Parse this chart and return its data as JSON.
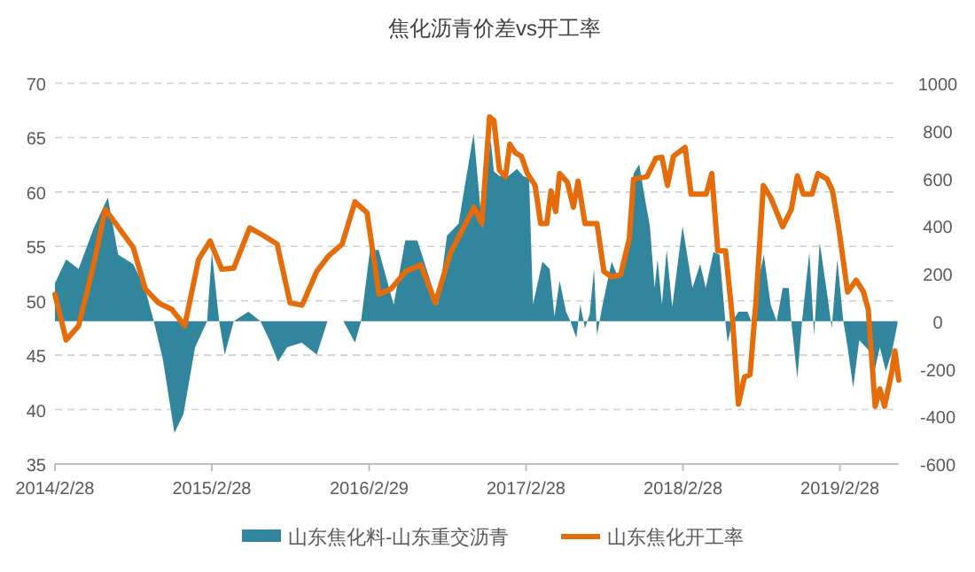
{
  "chart_data": {
    "type": "line",
    "title": "焦化沥青价差vs开工率",
    "xlim": [
      "2014-02-28",
      "2019-07-15"
    ],
    "xticks": [
      {
        "value": "2014-02-28",
        "label": "2014/2/28"
      },
      {
        "value": "2015-02-28",
        "label": "2015/2/28"
      },
      {
        "value": "2016-02-29",
        "label": "2016/2/29"
      },
      {
        "value": "2017-02-28",
        "label": "2017/2/28"
      },
      {
        "value": "2018-02-28",
        "label": "2018/2/28"
      },
      {
        "value": "2019-02-28",
        "label": "2019/2/28"
      }
    ],
    "ylim": [
      35,
      70
    ],
    "yticks": [
      35,
      40,
      45,
      50,
      55,
      60,
      65,
      70
    ],
    "y2lim": [
      -600,
      1000
    ],
    "y2ticks": [
      -600,
      -400,
      -200,
      0,
      200,
      400,
      600,
      800,
      1000
    ],
    "grid": "y",
    "legend": "bottom",
    "series": [
      {
        "name": "山东焦化料-山东重交沥青",
        "type": "area",
        "axis": "y2",
        "color": "#31859c",
        "x": [
          "2014-02-28",
          "2014-03-26",
          "2014-04-24",
          "2014-05-29",
          "2014-07-01",
          "2014-07-25",
          "2014-08-29",
          "2014-09-25",
          "2014-10-16",
          "2014-11-06",
          "2014-12-03",
          "2014-12-24",
          "2015-01-20",
          "2015-02-17",
          "2015-02-28",
          "2015-03-17",
          "2015-03-30",
          "2015-04-20",
          "2015-05-24",
          "2015-06-21",
          "2015-07-12",
          "2015-08-01",
          "2015-08-22",
          "2015-09-25",
          "2015-10-30",
          "2015-11-24",
          "2015-12-31",
          "2016-01-27",
          "2016-02-10",
          "2016-03-02",
          "2016-03-22",
          "2016-04-26",
          "2016-05-23",
          "2016-06-20",
          "2016-08-07",
          "2016-08-28",
          "2016-09-24",
          "2016-10-29",
          "2016-11-18",
          "2016-11-24",
          "2016-12-08",
          "2016-12-15",
          "2016-12-28",
          "2017-01-18",
          "2017-02-07",
          "2017-02-21",
          "2017-03-07",
          "2017-03-16",
          "2017-04-07",
          "2017-04-24",
          "2017-05-05",
          "2017-05-17",
          "2017-06-01",
          "2017-06-11",
          "2017-06-25",
          "2017-07-04",
          "2017-07-15",
          "2017-07-26",
          "2017-08-05",
          "2017-08-12",
          "2017-08-25",
          "2017-09-15",
          "2017-09-29",
          "2017-10-19",
          "2017-11-05",
          "2017-11-18",
          "2017-12-02",
          "2017-12-13",
          "2017-12-24",
          "2017-12-31",
          "2018-01-10",
          "2018-01-21",
          "2018-02-03",
          "2018-02-27",
          "2018-03-22",
          "2018-04-09",
          "2018-04-22",
          "2018-05-10",
          "2018-05-24",
          "2018-06-07",
          "2018-06-12",
          "2018-06-23",
          "2018-07-07",
          "2018-07-28",
          "2018-08-06",
          "2018-08-17",
          "2018-09-04",
          "2018-09-20",
          "2018-10-04",
          "2018-10-18",
          "2018-11-01",
          "2018-11-07",
          "2018-11-21",
          "2018-12-02",
          "2018-12-19",
          "2018-12-30",
          "2019-01-12",
          "2019-01-29",
          "2019-02-09",
          "2019-02-22",
          "2019-03-08",
          "2019-03-18",
          "2019-03-31",
          "2019-04-14",
          "2019-05-05",
          "2019-05-18",
          "2019-06-01",
          "2019-06-15",
          "2019-06-29",
          "2019-07-12"
        ],
        "values": [
          160,
          260,
          220,
          390,
          520,
          280,
          240,
          140,
          0,
          -160,
          -470,
          -390,
          -110,
          0,
          290,
          0,
          -140,
          0,
          40,
          0,
          -80,
          -170,
          -110,
          -90,
          -140,
          0,
          0,
          -90,
          0,
          300,
          300,
          70,
          340,
          340,
          70,
          360,
          410,
          790,
          390,
          560,
          760,
          630,
          610,
          610,
          640,
          610,
          600,
          70,
          250,
          220,
          20,
          170,
          40,
          0,
          -70,
          70,
          -30,
          30,
          220,
          -60,
          70,
          250,
          190,
          290,
          620,
          660,
          510,
          400,
          140,
          260,
          70,
          300,
          60,
          400,
          140,
          240,
          140,
          290,
          280,
          -10,
          -90,
          0,
          40,
          40,
          0,
          120,
          280,
          70,
          0,
          140,
          140,
          0,
          -240,
          0,
          290,
          -60,
          330,
          120,
          -30,
          260,
          0,
          -110,
          -280,
          -80,
          -120,
          -220,
          -110,
          -210,
          -130,
          -10
        ]
      },
      {
        "name": "山东焦化开工率",
        "color": "#e46c0a",
        "x": [
          "2014-02-28",
          "2014-03-26",
          "2014-04-24",
          "2014-05-29",
          "2014-06-25",
          "2014-07-25",
          "2014-08-29",
          "2014-09-26",
          "2014-10-27",
          "2014-11-27",
          "2014-12-27",
          "2015-01-28",
          "2015-02-24",
          "2015-03-23",
          "2015-04-20",
          "2015-05-27",
          "2015-06-28",
          "2015-07-30",
          "2015-08-29",
          "2015-09-26",
          "2015-10-30",
          "2015-11-26",
          "2015-12-28",
          "2016-01-27",
          "2016-02-24",
          "2016-03-23",
          "2016-04-20",
          "2016-05-24",
          "2016-06-28",
          "2016-08-01",
          "2016-09-05",
          "2016-10-30",
          "2016-11-17",
          "2016-12-05",
          "2016-12-15",
          "2016-12-28",
          "2017-01-11",
          "2017-01-21",
          "2017-02-03",
          "2017-02-17",
          "2017-03-03",
          "2017-03-21",
          "2017-04-03",
          "2017-04-17",
          "2017-04-27",
          "2017-05-08",
          "2017-05-17",
          "2017-06-04",
          "2017-06-18",
          "2017-06-29",
          "2017-07-15",
          "2017-08-12",
          "2017-08-28",
          "2017-09-15",
          "2017-10-06",
          "2017-10-26",
          "2017-11-05",
          "2017-12-06",
          "2017-12-27",
          "2018-01-10",
          "2018-01-23",
          "2018-02-06",
          "2018-03-05",
          "2018-03-19",
          "2018-04-23",
          "2018-05-06",
          "2018-05-20",
          "2018-06-07",
          "2018-06-23",
          "2018-07-07",
          "2018-07-21",
          "2018-08-03",
          "2018-08-17",
          "2018-09-03",
          "2018-09-20",
          "2018-10-18",
          "2018-11-07",
          "2018-11-21",
          "2018-12-05",
          "2018-12-25",
          "2019-01-08",
          "2019-01-29",
          "2019-02-11",
          "2019-02-25",
          "2019-03-18",
          "2019-04-07",
          "2019-04-24",
          "2019-05-05",
          "2019-05-21",
          "2019-06-01",
          "2019-06-12",
          "2019-06-29",
          "2019-07-06",
          "2019-07-15"
        ],
        "values": [
          50.6,
          46.4,
          47.7,
          53.3,
          58.4,
          56.8,
          54.9,
          51.1,
          49.8,
          49.2,
          47.7,
          53.8,
          55.5,
          52.9,
          53.0,
          56.7,
          56.0,
          55.2,
          49.8,
          49.6,
          52.7,
          54.1,
          55.2,
          59.1,
          58.1,
          50.6,
          51.1,
          52.7,
          53.3,
          49.8,
          54.4,
          58.6,
          57.1,
          66.9,
          66.6,
          62.0,
          61.4,
          64.4,
          63.6,
          63.3,
          61.7,
          60.6,
          57.1,
          57.1,
          60.1,
          58.2,
          61.7,
          60.9,
          58.6,
          61.0,
          57.1,
          57.1,
          52.7,
          52.2,
          52.4,
          55.7,
          61.2,
          61.4,
          63.1,
          63.2,
          60.6,
          63.3,
          64.1,
          59.8,
          59.8,
          61.7,
          54.6,
          54.6,
          48.4,
          40.5,
          43.0,
          43.2,
          50.0,
          60.6,
          59.5,
          56.8,
          58.4,
          61.5,
          59.8,
          59.8,
          61.7,
          61.2,
          60.1,
          56.8,
          50.8,
          51.9,
          50.8,
          49.2,
          40.3,
          41.9,
          40.3,
          43.5,
          45.4,
          42.7
        ]
      }
    ]
  }
}
